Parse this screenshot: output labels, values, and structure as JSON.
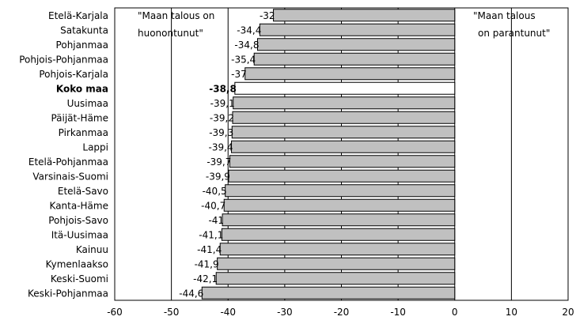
{
  "chart_data": {
    "type": "bar",
    "orientation": "horizontal",
    "categories": [
      "Etelä-Karjala",
      "Satakunta",
      "Pohjanmaa",
      "Pohjois-Pohjanmaa",
      "Pohjois-Karjala",
      "Koko maa",
      "Uusimaa",
      "Päijät-Häme",
      "Pirkanmaa",
      "Lappi",
      "Etelä-Pohjanmaa",
      "Varsinais-Suomi",
      "Etelä-Savo",
      "Kanta-Häme",
      "Pohjois-Savo",
      "Itä-Uusimaa",
      "Kainuu",
      "Kymenlaakso",
      "Keski-Suomi",
      "Keski-Pohjanmaa"
    ],
    "values": [
      -32,
      -34.4,
      -34.8,
      -35.4,
      -37,
      -38.8,
      -39.1,
      -39.2,
      -39.3,
      -39.4,
      -39.7,
      -39.9,
      -40.5,
      -40.7,
      -41,
      -41.1,
      -41.4,
      -41.9,
      -42.1,
      -44.6
    ],
    "value_labels": [
      "-32",
      "-34,4",
      "-34,8",
      "-35,4",
      "-37",
      "-38,8",
      "-39,1",
      "-39,2",
      "-39,3",
      "-39,4",
      "-39,7",
      "-39,9",
      "-40,5",
      "-40,7",
      "-41",
      "-41,1",
      "-41,4",
      "-41,9",
      "-42,1",
      "-44,6"
    ],
    "highlight_category": "Koko maa",
    "xlim": [
      -60,
      20
    ],
    "x_ticks": [
      -60,
      -50,
      -40,
      -30,
      -20,
      -10,
      0,
      10,
      20
    ],
    "grid": "vertical",
    "title": "",
    "xlabel": "",
    "ylabel": "",
    "bar_color": "#c0c0c0",
    "highlight_color": "#ffffff",
    "annotation_left": [
      "\"Maan talous on",
      "huonontunut\""
    ],
    "annotation_right": [
      "\"Maan talous",
      "on parantunut\""
    ]
  }
}
